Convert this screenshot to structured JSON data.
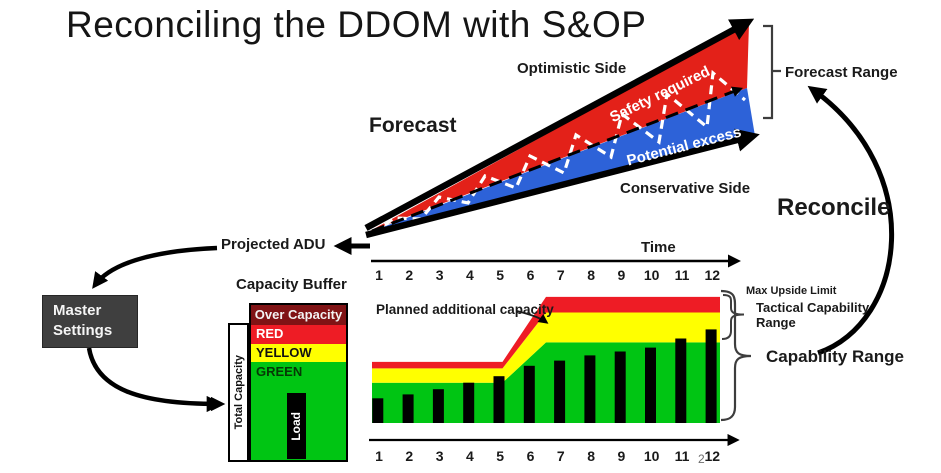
{
  "title": "Reconciling the DDOM with S&OP",
  "forecast": {
    "label": "Forecast",
    "optimistic_side": "Optimistic Side",
    "conservative_side": "Conservative Side",
    "safety_required": "Safety required",
    "potential_excess": "Potential excess",
    "range_label": "Forecast Range"
  },
  "reconcile_label": "Reconcile",
  "projected_adu": "Projected ADU",
  "master_settings": "Master Settings",
  "capacity_buffer": {
    "title": "Capacity Buffer",
    "over_capacity": "Over Capacity",
    "red": "RED",
    "yellow": "YELLOW",
    "green": "GREEN",
    "load": "Load",
    "total_capacity": "Total Capacity"
  },
  "time_axis": {
    "label": "Time",
    "ticks": [
      "1",
      "2",
      "3",
      "4",
      "5",
      "6",
      "7",
      "8",
      "9",
      "10",
      "11",
      "12"
    ]
  },
  "capability": {
    "planned_additional": "Planned additional capacity",
    "max_upside_limit": "Max Upside Limit",
    "tactical_range": "Tactical Capability Range",
    "capability_range": "Capability Range"
  },
  "page_number": "2",
  "colors": {
    "cone_red": "#e32119",
    "cone_blue": "#2d62d8",
    "band_red": "#ee1c25",
    "band_yellow": "#ffff00",
    "band_green": "#00c513",
    "over_capacity_maroon": "#801315",
    "master_box_gray": "#3f3f3f"
  },
  "chart_data": [
    {
      "name": "capability-range-vs-load",
      "type": "bar",
      "x": [
        1,
        2,
        3,
        4,
        5,
        6,
        7,
        8,
        9,
        10,
        11,
        12
      ],
      "series": [
        {
          "name": "Load",
          "values": [
            19,
            22,
            26,
            31,
            36,
            44,
            48,
            52,
            55,
            58,
            65,
            72
          ]
        }
      ],
      "bands_profile": {
        "x_breaks": [
          0,
          0.375,
          0.5,
          1
        ],
        "green_top": [
          31,
          31,
          62,
          62
        ],
        "yellow_top": [
          42,
          42,
          85,
          85
        ],
        "red_top": [
          47,
          47,
          97,
          97
        ]
      },
      "ylim": [
        0,
        100
      ],
      "xlabel": "Time",
      "annotations": [
        "Planned additional capacity",
        "Max Upside Limit",
        "Tactical Capability Range",
        "Capability Range"
      ],
      "legend": "off",
      "grid": "off"
    },
    {
      "name": "capacity-buffer",
      "type": "stacked-zones",
      "zones_top_to_bottom": [
        "Over Capacity",
        "RED",
        "YELLOW",
        "GREEN"
      ],
      "load_marker": "Load",
      "axis_label": "Total Capacity"
    }
  ]
}
